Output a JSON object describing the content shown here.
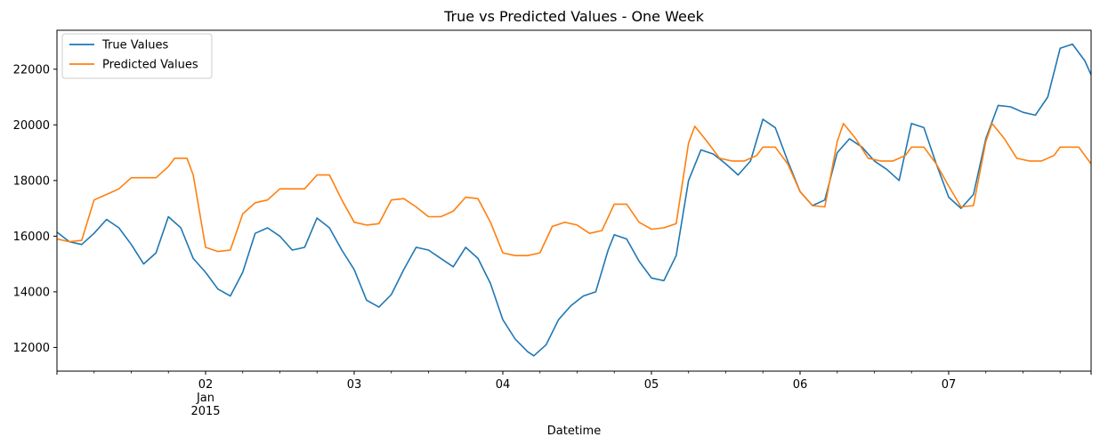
{
  "chart_data": {
    "type": "line",
    "title": "True vs Predicted Values - One Week",
    "xlabel": "Datetime",
    "ylabel": "",
    "x_start": "2015-01-01T00:00",
    "x_end": "2015-01-07T23:00",
    "x_ticks": [
      {
        "x": "2015-01-02T00:00",
        "label": "02",
        "sublabels": [
          "Jan",
          "2015"
        ]
      },
      {
        "x": "2015-01-03T00:00",
        "label": "03",
        "sublabels": []
      },
      {
        "x": "2015-01-04T00:00",
        "label": "04",
        "sublabels": []
      },
      {
        "x": "2015-01-05T00:00",
        "label": "05",
        "sublabels": []
      },
      {
        "x": "2015-01-06T00:00",
        "label": "06",
        "sublabels": []
      },
      {
        "x": "2015-01-07T00:00",
        "label": "07",
        "sublabels": []
      }
    ],
    "ylim": [
      11150,
      23400
    ],
    "y_ticks": [
      12000,
      14000,
      16000,
      18000,
      20000,
      22000
    ],
    "grid": false,
    "legend": "top-left",
    "series": [
      {
        "name": "True Values",
        "color": "#1f77b4",
        "points": [
          [
            "2015-01-01T00:00",
            16150
          ],
          [
            "2015-01-01T02:00",
            15800
          ],
          [
            "2015-01-01T04:00",
            15700
          ],
          [
            "2015-01-01T06:00",
            16100
          ],
          [
            "2015-01-01T08:00",
            16600
          ],
          [
            "2015-01-01T10:00",
            16300
          ],
          [
            "2015-01-01T12:00",
            15700
          ],
          [
            "2015-01-01T14:00",
            15000
          ],
          [
            "2015-01-01T16:00",
            15400
          ],
          [
            "2015-01-01T18:00",
            16700
          ],
          [
            "2015-01-01T20:00",
            16300
          ],
          [
            "2015-01-01T22:00",
            15200
          ],
          [
            "2015-01-02T00:00",
            14700
          ],
          [
            "2015-01-02T02:00",
            14100
          ],
          [
            "2015-01-02T04:00",
            13850
          ],
          [
            "2015-01-02T06:00",
            14700
          ],
          [
            "2015-01-02T08:00",
            16100
          ],
          [
            "2015-01-02T10:00",
            16300
          ],
          [
            "2015-01-02T12:00",
            16000
          ],
          [
            "2015-01-02T14:00",
            15500
          ],
          [
            "2015-01-02T16:00",
            15600
          ],
          [
            "2015-01-02T18:00",
            16650
          ],
          [
            "2015-01-02T20:00",
            16300
          ],
          [
            "2015-01-02T22:00",
            15500
          ],
          [
            "2015-01-03T00:00",
            14800
          ],
          [
            "2015-01-03T02:00",
            13700
          ],
          [
            "2015-01-03T04:00",
            13450
          ],
          [
            "2015-01-03T06:00",
            13900
          ],
          [
            "2015-01-03T08:00",
            14800
          ],
          [
            "2015-01-03T10:00",
            15600
          ],
          [
            "2015-01-03T12:00",
            15500
          ],
          [
            "2015-01-03T14:00",
            15200
          ],
          [
            "2015-01-03T16:00",
            14900
          ],
          [
            "2015-01-03T18:00",
            15600
          ],
          [
            "2015-01-03T20:00",
            15200
          ],
          [
            "2015-01-03T22:00",
            14300
          ],
          [
            "2015-01-04T00:00",
            13000
          ],
          [
            "2015-01-04T02:00",
            12300
          ],
          [
            "2015-01-04T04:00",
            11850
          ],
          [
            "2015-01-04T05:00",
            11700
          ],
          [
            "2015-01-04T07:00",
            12100
          ],
          [
            "2015-01-04T09:00",
            13000
          ],
          [
            "2015-01-04T11:00",
            13500
          ],
          [
            "2015-01-04T13:00",
            13850
          ],
          [
            "2015-01-04T15:00",
            14000
          ],
          [
            "2015-01-04T17:00",
            15500
          ],
          [
            "2015-01-04T18:00",
            16050
          ],
          [
            "2015-01-04T20:00",
            15900
          ],
          [
            "2015-01-04T22:00",
            15100
          ],
          [
            "2015-01-05T00:00",
            14500
          ],
          [
            "2015-01-05T02:00",
            14400
          ],
          [
            "2015-01-05T04:00",
            15300
          ],
          [
            "2015-01-05T06:00",
            18000
          ],
          [
            "2015-01-05T08:00",
            19100
          ],
          [
            "2015-01-05T10:00",
            18950
          ],
          [
            "2015-01-05T12:00",
            18600
          ],
          [
            "2015-01-05T14:00",
            18200
          ],
          [
            "2015-01-05T16:00",
            18700
          ],
          [
            "2015-01-05T18:00",
            20200
          ],
          [
            "2015-01-05T20:00",
            19900
          ],
          [
            "2015-01-05T22:00",
            18700
          ],
          [
            "2015-01-06T00:00",
            17600
          ],
          [
            "2015-01-06T02:00",
            17100
          ],
          [
            "2015-01-06T04:00",
            17300
          ],
          [
            "2015-01-06T06:00",
            19000
          ],
          [
            "2015-01-06T08:00",
            19500
          ],
          [
            "2015-01-06T10:00",
            19200
          ],
          [
            "2015-01-06T12:00",
            18700
          ],
          [
            "2015-01-06T14:00",
            18400
          ],
          [
            "2015-01-06T16:00",
            18000
          ],
          [
            "2015-01-06T18:00",
            20050
          ],
          [
            "2015-01-06T20:00",
            19900
          ],
          [
            "2015-01-06T22:00",
            18600
          ],
          [
            "2015-01-07T00:00",
            17400
          ],
          [
            "2015-01-07T02:00",
            17000
          ],
          [
            "2015-01-07T04:00",
            17500
          ],
          [
            "2015-01-07T06:00",
            19500
          ],
          [
            "2015-01-07T08:00",
            20700
          ],
          [
            "2015-01-07T10:00",
            20650
          ],
          [
            "2015-01-07T12:00",
            20450
          ],
          [
            "2015-01-07T14:00",
            20350
          ],
          [
            "2015-01-07T16:00",
            21000
          ],
          [
            "2015-01-07T18:00",
            22750
          ],
          [
            "2015-01-07T20:00",
            22900
          ],
          [
            "2015-01-07T22:00",
            22300
          ],
          [
            "2015-01-07T23:00",
            21800
          ]
        ]
      },
      {
        "name": "Predicted Values",
        "color": "#ff7f0e",
        "points": [
          [
            "2015-01-01T00:00",
            15900
          ],
          [
            "2015-01-01T02:00",
            15800
          ],
          [
            "2015-01-01T04:00",
            15850
          ],
          [
            "2015-01-01T06:00",
            17300
          ],
          [
            "2015-01-01T08:00",
            17500
          ],
          [
            "2015-01-01T10:00",
            17700
          ],
          [
            "2015-01-01T12:00",
            18100
          ],
          [
            "2015-01-01T14:00",
            18100
          ],
          [
            "2015-01-01T16:00",
            18100
          ],
          [
            "2015-01-01T18:00",
            18500
          ],
          [
            "2015-01-01T19:00",
            18800
          ],
          [
            "2015-01-01T21:00",
            18800
          ],
          [
            "2015-01-01T22:00",
            18200
          ],
          [
            "2015-01-02T00:00",
            15600
          ],
          [
            "2015-01-02T02:00",
            15450
          ],
          [
            "2015-01-02T04:00",
            15500
          ],
          [
            "2015-01-02T06:00",
            16800
          ],
          [
            "2015-01-02T08:00",
            17200
          ],
          [
            "2015-01-02T10:00",
            17300
          ],
          [
            "2015-01-02T12:00",
            17700
          ],
          [
            "2015-01-02T14:00",
            17700
          ],
          [
            "2015-01-02T16:00",
            17700
          ],
          [
            "2015-01-02T18:00",
            18200
          ],
          [
            "2015-01-02T20:00",
            18200
          ],
          [
            "2015-01-02T22:00",
            17300
          ],
          [
            "2015-01-03T00:00",
            16500
          ],
          [
            "2015-01-03T02:00",
            16400
          ],
          [
            "2015-01-03T04:00",
            16450
          ],
          [
            "2015-01-03T06:00",
            17300
          ],
          [
            "2015-01-03T08:00",
            17350
          ],
          [
            "2015-01-03T10:00",
            17050
          ],
          [
            "2015-01-03T12:00",
            16700
          ],
          [
            "2015-01-03T14:00",
            16700
          ],
          [
            "2015-01-03T16:00",
            16900
          ],
          [
            "2015-01-03T18:00",
            17400
          ],
          [
            "2015-01-03T20:00",
            17350
          ],
          [
            "2015-01-03T22:00",
            16500
          ],
          [
            "2015-01-04T00:00",
            15400
          ],
          [
            "2015-01-04T02:00",
            15300
          ],
          [
            "2015-01-04T04:00",
            15300
          ],
          [
            "2015-01-04T06:00",
            15400
          ],
          [
            "2015-01-04T08:00",
            16350
          ],
          [
            "2015-01-04T10:00",
            16500
          ],
          [
            "2015-01-04T12:00",
            16400
          ],
          [
            "2015-01-04T14:00",
            16100
          ],
          [
            "2015-01-04T16:00",
            16200
          ],
          [
            "2015-01-04T18:00",
            17150
          ],
          [
            "2015-01-04T20:00",
            17150
          ],
          [
            "2015-01-04T22:00",
            16500
          ],
          [
            "2015-01-05T00:00",
            16250
          ],
          [
            "2015-01-05T02:00",
            16300
          ],
          [
            "2015-01-05T04:00",
            16450
          ],
          [
            "2015-01-05T06:00",
            19350
          ],
          [
            "2015-01-05T07:00",
            19950
          ],
          [
            "2015-01-05T09:00",
            19400
          ],
          [
            "2015-01-05T11:00",
            18800
          ],
          [
            "2015-01-05T13:00",
            18700
          ],
          [
            "2015-01-05T15:00",
            18700
          ],
          [
            "2015-01-05T17:00",
            18900
          ],
          [
            "2015-01-05T18:00",
            19200
          ],
          [
            "2015-01-05T20:00",
            19200
          ],
          [
            "2015-01-05T22:00",
            18600
          ],
          [
            "2015-01-06T00:00",
            17600
          ],
          [
            "2015-01-06T02:00",
            17100
          ],
          [
            "2015-01-06T04:00",
            17050
          ],
          [
            "2015-01-06T06:00",
            19400
          ],
          [
            "2015-01-06T07:00",
            20050
          ],
          [
            "2015-01-06T09:00",
            19500
          ],
          [
            "2015-01-06T11:00",
            18800
          ],
          [
            "2015-01-06T13:00",
            18700
          ],
          [
            "2015-01-06T15:00",
            18700
          ],
          [
            "2015-01-06T17:00",
            18900
          ],
          [
            "2015-01-06T18:00",
            19200
          ],
          [
            "2015-01-06T20:00",
            19200
          ],
          [
            "2015-01-06T22:00",
            18600
          ],
          [
            "2015-01-07T00:00",
            17800
          ],
          [
            "2015-01-07T02:00",
            17050
          ],
          [
            "2015-01-07T04:00",
            17100
          ],
          [
            "2015-01-07T06:00",
            19400
          ],
          [
            "2015-01-07T07:00",
            20050
          ],
          [
            "2015-01-07T09:00",
            19500
          ],
          [
            "2015-01-07T11:00",
            18800
          ],
          [
            "2015-01-07T13:00",
            18700
          ],
          [
            "2015-01-07T15:00",
            18700
          ],
          [
            "2015-01-07T17:00",
            18900
          ],
          [
            "2015-01-07T18:00",
            19200
          ],
          [
            "2015-01-07T21:00",
            19200
          ],
          [
            "2015-01-07T23:00",
            18600
          ]
        ]
      }
    ]
  }
}
